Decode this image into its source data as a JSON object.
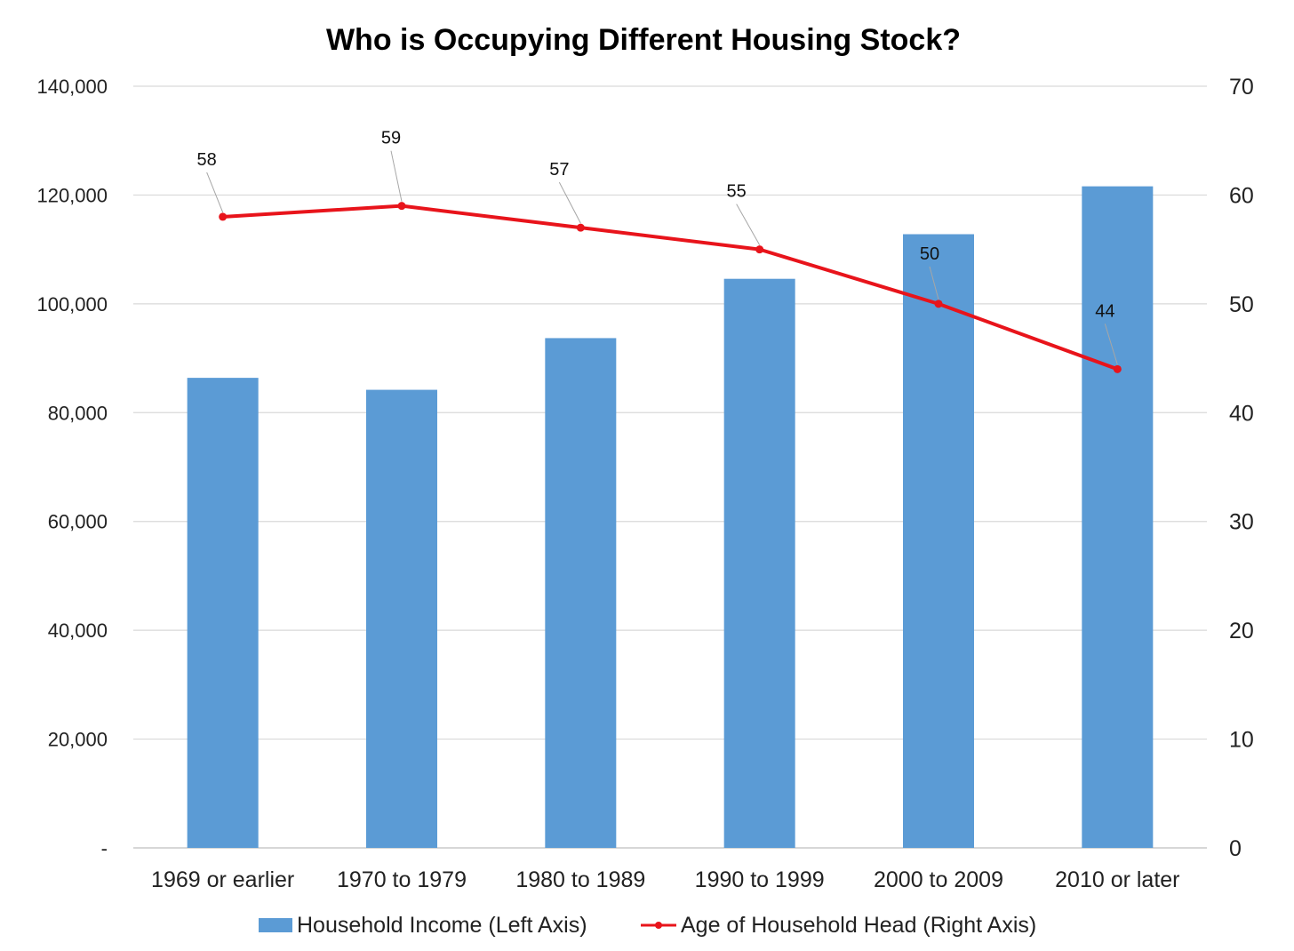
{
  "chart_data": {
    "type": "bar",
    "title": "Who is Occupying Different Housing Stock?",
    "categories": [
      "1969 or earlier",
      "1970 to 1979",
      "1980 to 1989",
      "1990 to 1999",
      "2000 to 2009",
      "2010 or later"
    ],
    "series": [
      {
        "name": "Household Income (Left Axis)",
        "type": "bar",
        "axis": "left",
        "color": "#5b9bd5",
        "values": [
          86400,
          84200,
          93700,
          104600,
          112800,
          121600
        ]
      },
      {
        "name": "Age of Household Head (Right Axis)",
        "type": "line",
        "axis": "right",
        "color": "#e8141b",
        "values": [
          58,
          59,
          57,
          55,
          50,
          44
        ],
        "data_labels": [
          "58",
          "59",
          "57",
          "55",
          "50",
          "44"
        ]
      }
    ],
    "left_axis": {
      "ylim": [
        0,
        140000
      ],
      "tick_labels": [
        "-",
        "20,000",
        "40,000",
        "60,000",
        "80,000",
        "100,000",
        "120,000",
        "140,000"
      ]
    },
    "right_axis": {
      "ylim": [
        0,
        70
      ],
      "tick_labels": [
        "0",
        "10",
        "20",
        "30",
        "40",
        "50",
        "60",
        "70"
      ]
    },
    "grid": true,
    "legend": "bottom"
  }
}
